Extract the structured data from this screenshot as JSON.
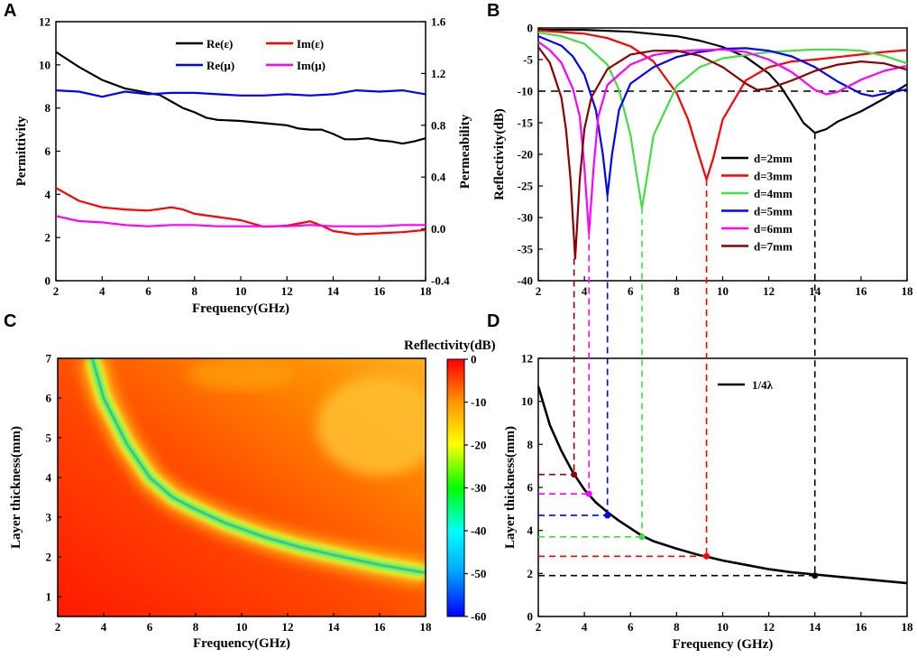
{
  "chart_data": [
    {
      "panel": "A",
      "type": "line",
      "xlabel": "Frequency(GHz)",
      "ylabel": "Permittivity",
      "y2label": "Permeability",
      "xlim": [
        2,
        18
      ],
      "ylim": [
        0,
        12
      ],
      "y2lim": [
        -0.4,
        1.6
      ],
      "xticks": [
        "2",
        "4",
        "6",
        "8",
        "10",
        "12",
        "14",
        "16",
        "18"
      ],
      "yticks": [
        "0",
        "2",
        "4",
        "6",
        "8",
        "10",
        "12"
      ],
      "y2ticks": [
        "-0.4",
        "0.0",
        "0.4",
        "0.8",
        "1.2",
        "1.6"
      ],
      "series": [
        {
          "name": "Re(ε)",
          "axis": "left",
          "color": "#000000",
          "x": [
            2,
            3,
            4,
            5,
            5.5,
            6,
            6.5,
            7,
            7.5,
            8,
            8.5,
            9,
            10,
            11,
            12,
            12.5,
            13,
            13.5,
            14,
            14.5,
            15,
            15.5,
            16,
            16.5,
            17,
            17.5,
            18
          ],
          "y": [
            10.6,
            9.9,
            9.3,
            8.9,
            8.8,
            8.7,
            8.6,
            8.3,
            8.0,
            7.8,
            7.55,
            7.45,
            7.4,
            7.3,
            7.2,
            7.05,
            7.0,
            7.0,
            6.8,
            6.55,
            6.55,
            6.6,
            6.5,
            6.45,
            6.35,
            6.45,
            6.6
          ]
        },
        {
          "name": "Im(ε)",
          "axis": "left",
          "color": "#ff0000",
          "x": [
            2,
            3,
            4,
            5,
            6,
            7,
            7.5,
            8,
            9,
            10,
            11,
            12,
            13,
            13.5,
            14,
            15,
            16,
            17,
            18
          ],
          "y": [
            4.3,
            3.7,
            3.4,
            3.3,
            3.25,
            3.4,
            3.3,
            3.1,
            2.95,
            2.8,
            2.5,
            2.55,
            2.75,
            2.55,
            2.3,
            2.15,
            2.2,
            2.25,
            2.35
          ]
        },
        {
          "name": "Re(μ)",
          "axis": "right",
          "color": "#0000ff",
          "x": [
            2,
            3,
            4,
            5,
            6,
            7,
            8,
            9,
            10,
            11,
            12,
            13,
            14,
            15,
            16,
            17,
            18
          ],
          "y": [
            1.07,
            1.06,
            1.02,
            1.06,
            1.04,
            1.05,
            1.05,
            1.04,
            1.03,
            1.03,
            1.04,
            1.03,
            1.04,
            1.07,
            1.06,
            1.07,
            1.04
          ]
        },
        {
          "name": "Im(μ)",
          "axis": "right",
          "color": "#ff00ff",
          "x": [
            2,
            3,
            4,
            5,
            6,
            7,
            8,
            9,
            10,
            11,
            12,
            13,
            14,
            15,
            16,
            17,
            18
          ],
          "y": [
            0.1,
            0.06,
            0.05,
            0.03,
            0.02,
            0.03,
            0.03,
            0.02,
            0.02,
            0.02,
            0.02,
            0.03,
            0.02,
            0.02,
            0.02,
            0.03,
            0.03
          ]
        }
      ]
    },
    {
      "panel": "B",
      "type": "line",
      "xlabel": "",
      "ylabel": "Reflectivity(dB)",
      "xlim": [
        2,
        18
      ],
      "ylim": [
        -40,
        0
      ],
      "xticks": [
        "2",
        "4",
        "6",
        "8",
        "10",
        "12",
        "14",
        "16",
        "18"
      ],
      "yticks": [
        "0",
        "-5",
        "-10",
        "-15",
        "-20",
        "-25",
        "-30",
        "-35",
        "-40"
      ],
      "reference_line": -10,
      "series": [
        {
          "name": "d=2mm",
          "color": "#000000",
          "x": [
            2,
            4,
            6,
            8,
            9,
            10,
            11,
            12,
            12.5,
            13,
            13.5,
            14,
            14.5,
            15,
            16,
            17,
            18
          ],
          "y": [
            -0.3,
            -0.3,
            -0.6,
            -1.3,
            -2.0,
            -3.0,
            -4.6,
            -7.2,
            -9.2,
            -12.0,
            -15.0,
            -16.6,
            -16.0,
            -14.8,
            -13.2,
            -11.2,
            -8.9
          ]
        },
        {
          "name": "d=3mm",
          "color": "#ff0000",
          "x": [
            2,
            4,
            5,
            6,
            7,
            8,
            8.5,
            9,
            9.3,
            9.6,
            10,
            11,
            12,
            13,
            14,
            15,
            16,
            17,
            18
          ],
          "y": [
            -0.4,
            -0.9,
            -1.6,
            -2.9,
            -5.3,
            -10.3,
            -14.5,
            -20.5,
            -24.0,
            -20.5,
            -14.5,
            -8.3,
            -6.2,
            -5.3,
            -5.0,
            -4.6,
            -4.2,
            -3.8,
            -3.5
          ]
        },
        {
          "name": "d=4mm",
          "color": "#44dd44",
          "x": [
            2,
            3,
            4,
            5,
            5.5,
            6,
            6.3,
            6.5,
            6.7,
            7,
            8,
            9,
            10,
            12,
            14,
            15,
            16,
            17,
            18
          ],
          "y": [
            -0.7,
            -1.3,
            -2.5,
            -5.8,
            -9.8,
            -17.0,
            -24.0,
            -28.5,
            -24.0,
            -17.0,
            -9.2,
            -6.2,
            -4.8,
            -3.8,
            -3.4,
            -3.4,
            -3.6,
            -4.4,
            -5.6
          ]
        },
        {
          "name": "d=5mm",
          "color": "#0000ff",
          "x": [
            2,
            3,
            3.5,
            4,
            4.5,
            4.8,
            5.0,
            5.2,
            5.5,
            6,
            7,
            8,
            9,
            10,
            11,
            12,
            13,
            14,
            15,
            16,
            16.5,
            17,
            18
          ],
          "y": [
            -1.3,
            -2.8,
            -4.5,
            -7.4,
            -13.0,
            -20.0,
            -26.5,
            -20.0,
            -13.0,
            -8.8,
            -6.2,
            -4.6,
            -3.8,
            -3.3,
            -3.2,
            -3.6,
            -4.5,
            -6.2,
            -8.5,
            -10.4,
            -10.8,
            -10.4,
            -9.7
          ]
        },
        {
          "name": "d=6mm",
          "color": "#ff00ff",
          "x": [
            2,
            2.5,
            3,
            3.5,
            3.8,
            4.0,
            4.2,
            4.4,
            4.6,
            5,
            6,
            7,
            8,
            9,
            10,
            11,
            12,
            13,
            14,
            14.5,
            15,
            16,
            17,
            18
          ],
          "y": [
            -2.2,
            -3.5,
            -5.5,
            -9.6,
            -14.0,
            -22.0,
            -32.5,
            -22.0,
            -14.0,
            -9.0,
            -5.8,
            -4.3,
            -3.7,
            -3.5,
            -3.4,
            -3.8,
            -5.0,
            -7.0,
            -9.8,
            -10.5,
            -10.1,
            -8.2,
            -6.8,
            -6.0
          ]
        },
        {
          "name": "d=7mm",
          "color": "#8b0000",
          "x": [
            2,
            2.5,
            3,
            3.2,
            3.4,
            3.6,
            3.8,
            4.0,
            4.3,
            5,
            6,
            7,
            8,
            9,
            10,
            11,
            11.5,
            12,
            13,
            14,
            15,
            16,
            17,
            18
          ],
          "y": [
            -3.0,
            -5.5,
            -11.0,
            -16.0,
            -24.0,
            -36.5,
            -24.0,
            -16.0,
            -11.0,
            -6.5,
            -4.2,
            -3.6,
            -3.6,
            -4.4,
            -6.2,
            -8.8,
            -9.8,
            -9.6,
            -8.3,
            -6.8,
            -5.8,
            -5.3,
            -5.6,
            -6.6
          ]
        }
      ]
    },
    {
      "panel": "C",
      "type": "heatmap",
      "title": "Reflectivity(dB)",
      "xlabel": "Frequency(GHz)",
      "ylabel": "Layer thickness(mm)",
      "xlim": [
        2,
        18
      ],
      "ylim": [
        0.5,
        7
      ],
      "zlim": [
        -60,
        0
      ],
      "xticks": [
        "2",
        "4",
        "6",
        "8",
        "10",
        "12",
        "14",
        "16",
        "18"
      ],
      "yticks": [
        "1",
        "2",
        "3",
        "4",
        "5",
        "6",
        "7"
      ],
      "colorbar_ticks": [
        "0",
        "-10",
        "-20",
        "-30",
        "-40",
        "-50",
        "-60"
      ],
      "ridge": {
        "x": [
          3.5,
          4.0,
          5.0,
          6.0,
          7.0,
          8.0,
          9.3,
          11.0,
          12.5,
          14.0,
          16.0,
          18.0
        ],
        "y": [
          7.0,
          6.0,
          4.85,
          4.0,
          3.5,
          3.2,
          2.85,
          2.5,
          2.25,
          2.05,
          1.8,
          1.6
        ]
      }
    },
    {
      "panel": "D",
      "type": "line",
      "xlabel": "Frequency (GHz)",
      "ylabel": "Layer thickness(mm)",
      "xlim": [
        2,
        18
      ],
      "ylim": [
        0,
        12
      ],
      "xticks": [
        "2",
        "4",
        "6",
        "8",
        "10",
        "12",
        "14",
        "16",
        "18"
      ],
      "yticks": [
        "0",
        "2",
        "4",
        "6",
        "8",
        "10",
        "12"
      ],
      "series": [
        {
          "name": "1/4λ",
          "color": "#000000",
          "x": [
            2,
            2.5,
            3,
            3.5,
            4,
            4.5,
            5,
            5.5,
            6,
            6.5,
            7,
            8,
            9,
            9.3,
            10,
            11,
            12,
            13,
            14,
            15,
            16,
            17,
            18
          ],
          "y": [
            10.7,
            8.9,
            7.7,
            6.7,
            5.9,
            5.3,
            4.85,
            4.45,
            4.1,
            3.75,
            3.5,
            3.15,
            2.85,
            2.78,
            2.6,
            2.4,
            2.2,
            2.05,
            1.95,
            1.85,
            1.75,
            1.65,
            1.55
          ]
        }
      ],
      "markers": [
        {
          "x": 3.55,
          "y": 6.6,
          "color": "#8b0000"
        },
        {
          "x": 4.2,
          "y": 5.7,
          "color": "#ff00ff"
        },
        {
          "x": 5.0,
          "y": 4.7,
          "color": "#0000ff"
        },
        {
          "x": 6.5,
          "y": 3.7,
          "color": "#44dd44"
        },
        {
          "x": 9.3,
          "y": 2.8,
          "color": "#ff0000"
        },
        {
          "x": 14.0,
          "y": 1.9,
          "color": "#000000"
        }
      ]
    }
  ],
  "panels": {
    "a": "A",
    "b": "B",
    "c": "C",
    "d": "D"
  }
}
